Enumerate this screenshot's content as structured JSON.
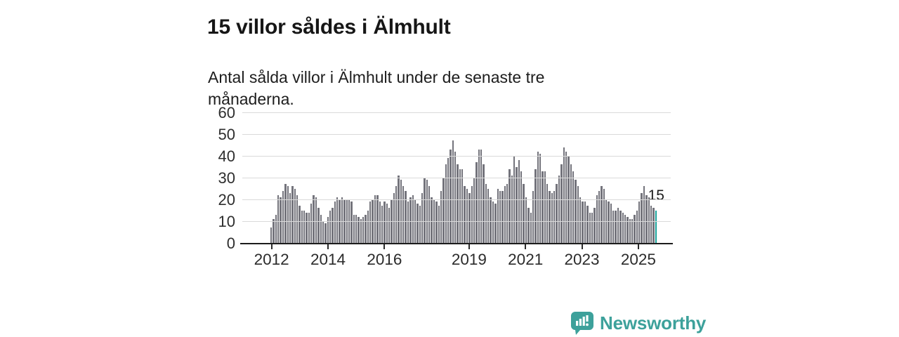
{
  "header": {
    "title": "15 villor såldes i Älmhult",
    "subtitle": "Antal sålda villor i Älmhult under de senaste tre månaderna."
  },
  "footer": {
    "brand": "Newsworthy",
    "logo_icon": "newsworthy-speech-bubble-chart-icon"
  },
  "colors": {
    "bar": "#74747c",
    "highlight": "#1aa29a",
    "brand_teal": "#3da19b",
    "gridline": "#dadada",
    "axis": "#1c1c1c"
  },
  "chart_data": {
    "type": "bar",
    "title": "15 villor såldes i Älmhult",
    "subtitle": "Antal sålda villor i Älmhult under de senaste tre månaderna.",
    "xlabel": "",
    "ylabel": "",
    "ylim": [
      0,
      60
    ],
    "y_ticks": [
      0,
      10,
      20,
      30,
      40,
      50,
      60
    ],
    "grid": true,
    "legend": "none",
    "frequency": "monthly",
    "start_month": "2012-01",
    "end_month": "2025-08",
    "x_ticks": [
      {
        "label": "2012",
        "month": 0
      },
      {
        "label": "2014",
        "month": 24
      },
      {
        "label": "2016",
        "month": 48
      },
      {
        "label": "2019",
        "month": 84
      },
      {
        "label": "2021",
        "month": 108
      },
      {
        "label": "2023",
        "month": 132
      },
      {
        "label": "2025",
        "month": 156
      }
    ],
    "bar_color": "#74747c",
    "highlight": {
      "index": 163,
      "value": 15,
      "label": "15",
      "color": "#1aa29a"
    },
    "values": [
      7,
      11,
      13,
      22,
      21,
      24,
      27,
      26,
      23,
      26,
      25,
      22,
      17,
      15,
      15,
      14,
      14,
      18,
      22,
      21,
      16,
      13,
      10,
      9,
      12,
      15,
      16,
      19,
      21,
      20,
      21,
      20,
      20,
      20,
      19,
      13,
      13,
      12,
      11,
      12,
      13,
      15,
      19,
      20,
      22,
      22,
      19,
      17,
      19,
      18,
      16,
      20,
      23,
      26,
      31,
      29,
      26,
      24,
      19,
      21,
      22,
      20,
      18,
      17,
      23,
      30,
      29,
      26,
      21,
      20,
      19,
      17,
      24,
      30,
      36,
      39,
      43,
      47,
      42,
      36,
      34,
      34,
      26,
      25,
      23,
      26,
      30,
      37,
      43,
      43,
      36,
      27,
      25,
      21,
      19,
      18,
      25,
      24,
      24,
      26,
      27,
      34,
      31,
      40,
      35,
      38,
      33,
      27,
      21,
      16,
      14,
      24,
      34,
      42,
      41,
      33,
      33,
      27,
      24,
      23,
      24,
      27,
      31,
      36,
      44,
      42,
      40,
      36,
      33,
      29,
      26,
      21,
      19,
      19,
      17,
      14,
      14,
      16,
      22,
      24,
      26,
      25,
      20,
      19,
      18,
      15,
      15,
      16,
      15,
      14,
      13,
      12,
      11,
      11,
      13,
      15,
      19,
      23,
      26,
      22,
      21,
      17,
      16,
      15
    ]
  }
}
